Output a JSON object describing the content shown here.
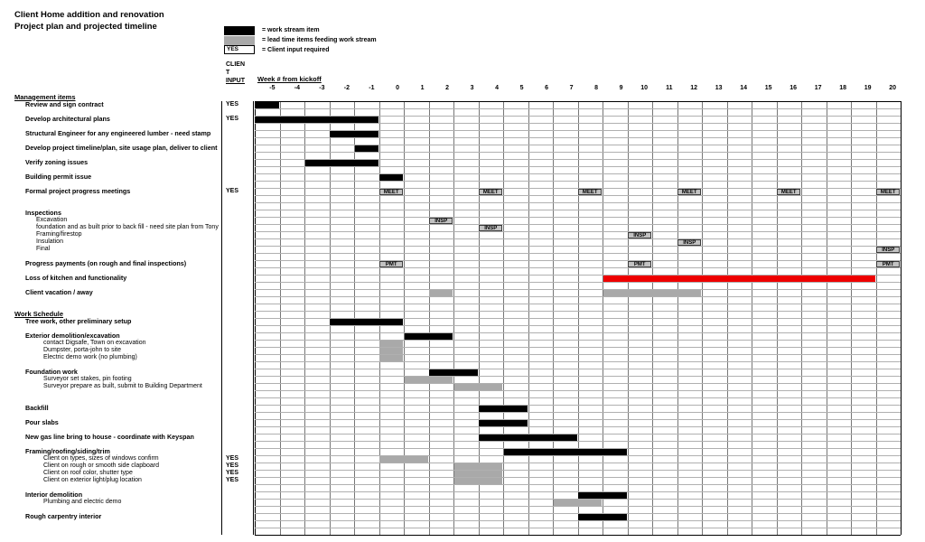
{
  "title": {
    "line1": "Client Home addition and renovation",
    "line2": "Project plan and projected timeline"
  },
  "legend": {
    "items": [
      {
        "swatch": "black",
        "label": "= work stream item"
      },
      {
        "swatch": "gray",
        "label": "= lead time items feeding work stream"
      },
      {
        "swatch": "yes-box",
        "swatch_text": "YES",
        "label": "= Client input required"
      }
    ]
  },
  "client_input_header_lines": [
    "CLIEN",
    "T",
    "INPUT"
  ],
  "colors": {
    "black": "#000000",
    "gray": "#a9a9a9",
    "red": "#ee0000",
    "marker_bg": "#c2c2c2"
  },
  "chart_data": {
    "type": "gantt",
    "title": "Client Home addition and renovation - Project plan and projected timeline",
    "x_axis": {
      "label": "Week # from kickoff",
      "range": [
        -5,
        20
      ]
    },
    "weeks": [
      -5,
      -4,
      -3,
      -2,
      -1,
      0,
      1,
      2,
      3,
      4,
      5,
      6,
      7,
      8,
      9,
      10,
      11,
      12,
      13,
      14,
      15,
      16,
      17,
      18,
      19,
      20
    ],
    "row_count": 60,
    "tasks": [
      {
        "row": -1,
        "style": "section",
        "indent": 0,
        "label": "Management items"
      },
      {
        "row": 0,
        "style": "task",
        "indent": 1,
        "label": "Review and sign contract",
        "client_input": "YES",
        "bars": [
          {
            "start": -5,
            "end": -5,
            "color": "black"
          }
        ]
      },
      {
        "row": 2,
        "style": "task",
        "indent": 1,
        "label": "Develop architectural plans",
        "client_input": "YES",
        "bars": [
          {
            "start": -5,
            "end": -1,
            "color": "black"
          }
        ]
      },
      {
        "row": 4,
        "style": "task",
        "indent": 1,
        "label": "Structural Engineer for any engineered lumber - need stamp",
        "bars": [
          {
            "start": -2,
            "end": -1,
            "color": "black"
          }
        ]
      },
      {
        "row": 6,
        "style": "task",
        "indent": 1,
        "label": "Develop project timeline/plan, site usage plan, deliver to client",
        "bars": [
          {
            "start": -1,
            "end": -1,
            "color": "black"
          }
        ]
      },
      {
        "row": 8,
        "style": "task",
        "indent": 1,
        "label": "Verify zoning issues",
        "bars": [
          {
            "start": -3,
            "end": -1,
            "color": "black"
          }
        ]
      },
      {
        "row": 10,
        "style": "task",
        "indent": 1,
        "label": "Building permit issue",
        "bars": [
          {
            "start": 0,
            "end": 0,
            "color": "black"
          }
        ]
      },
      {
        "row": 12,
        "style": "task",
        "indent": 1,
        "label": "Formal project progress meetings",
        "client_input": "YES",
        "markers": [
          {
            "week": 0,
            "text": "MEET"
          },
          {
            "week": 4,
            "text": "MEET"
          },
          {
            "week": 8,
            "text": "MEET"
          },
          {
            "week": 12,
            "text": "MEET"
          },
          {
            "week": 16,
            "text": "MEET"
          },
          {
            "week": 20,
            "text": "MEET"
          }
        ]
      },
      {
        "row": 15,
        "style": "task",
        "indent": 1,
        "label": "Inspections"
      },
      {
        "row": 16,
        "style": "sub",
        "indent": 2,
        "label": "Excavation",
        "markers": [
          {
            "week": 2,
            "text": "INSP"
          }
        ]
      },
      {
        "row": 17,
        "style": "sub",
        "indent": 2,
        "label": "foundation and as built prior to back fill - need site plan from Tony",
        "markers": [
          {
            "week": 4,
            "text": "INSP"
          }
        ]
      },
      {
        "row": 18,
        "style": "sub",
        "indent": 2,
        "label": "Framing/firestop",
        "markers": [
          {
            "week": 10,
            "text": "INSP"
          }
        ]
      },
      {
        "row": 19,
        "style": "sub",
        "indent": 2,
        "label": "Insulation",
        "markers": [
          {
            "week": 12,
            "text": "INSP"
          }
        ]
      },
      {
        "row": 20,
        "style": "sub",
        "indent": 2,
        "label": "Final",
        "markers": [
          {
            "week": 20,
            "text": "INSP"
          }
        ]
      },
      {
        "row": 22,
        "style": "task",
        "indent": 1,
        "label": "Progress payments (on rough and final inspections)",
        "markers": [
          {
            "week": 0,
            "text": "PMT"
          },
          {
            "week": 10,
            "text": "PMT"
          },
          {
            "week": 20,
            "text": "PMT"
          }
        ]
      },
      {
        "row": 24,
        "style": "task",
        "indent": 1,
        "label": "Loss of kitchen and functionality",
        "bars": [
          {
            "start": 9,
            "end": 19,
            "color": "red"
          }
        ]
      },
      {
        "row": 26,
        "style": "task",
        "indent": 1,
        "label": "Client vacation / away",
        "bars": [
          {
            "start": 2,
            "end": 2,
            "color": "gray"
          },
          {
            "start": 9,
            "end": 12,
            "color": "gray"
          }
        ]
      },
      {
        "row": 29,
        "style": "section",
        "indent": 0,
        "label": "Work Schedule"
      },
      {
        "row": 30,
        "style": "task",
        "indent": 1,
        "label": "Tree work, other preliminary setup",
        "bars": [
          {
            "start": -2,
            "end": 0,
            "color": "black"
          }
        ]
      },
      {
        "row": 32,
        "style": "task",
        "indent": 1,
        "label": "Exterior demolition/excavation",
        "bars": [
          {
            "start": 1,
            "end": 2,
            "color": "black"
          }
        ]
      },
      {
        "row": 33,
        "style": "sub",
        "indent": 3,
        "label": "contact Digsafe, Town on excavation",
        "bars": [
          {
            "start": 0,
            "end": 0,
            "color": "gray"
          }
        ]
      },
      {
        "row": 34,
        "style": "sub",
        "indent": 3,
        "label": "Dumpster, porta-john to site",
        "bars": [
          {
            "start": 0,
            "end": 0,
            "color": "gray"
          }
        ]
      },
      {
        "row": 35,
        "style": "sub",
        "indent": 3,
        "label": "Electric demo work (no plumbing)",
        "bars": [
          {
            "start": 0,
            "end": 0,
            "color": "gray"
          }
        ]
      },
      {
        "row": 37,
        "style": "task",
        "indent": 1,
        "label": "Foundation work",
        "bars": [
          {
            "start": 2,
            "end": 3,
            "color": "black"
          }
        ]
      },
      {
        "row": 38,
        "style": "sub",
        "indent": 3,
        "label": "Surveyor set stakes, pin footing",
        "bars": [
          {
            "start": 1,
            "end": 2,
            "color": "gray"
          }
        ]
      },
      {
        "row": 39,
        "style": "sub",
        "indent": 3,
        "label": "Surveyor prepare as built, submit to Building Department",
        "bars": [
          {
            "start": 3,
            "end": 4,
            "color": "gray"
          }
        ]
      },
      {
        "row": 42,
        "style": "task",
        "indent": 1,
        "label": "Backfill",
        "bars": [
          {
            "start": 4,
            "end": 5,
            "color": "black"
          }
        ]
      },
      {
        "row": 44,
        "style": "task",
        "indent": 1,
        "label": "Pour slabs",
        "bars": [
          {
            "start": 4,
            "end": 5,
            "color": "black"
          }
        ]
      },
      {
        "row": 46,
        "style": "task",
        "indent": 1,
        "label": "New gas line bring to house - coordinate with Keyspan",
        "bars": [
          {
            "start": 4,
            "end": 7,
            "color": "black"
          }
        ]
      },
      {
        "row": 48,
        "style": "task",
        "indent": 1,
        "label": "Framing/roofing/siding/trim",
        "bars": [
          {
            "start": 5,
            "end": 9,
            "color": "black"
          }
        ]
      },
      {
        "row": 49,
        "style": "sub",
        "indent": 3,
        "label": "Client on types, sizes of windows confirm",
        "client_input": "YES",
        "bars": [
          {
            "start": 0,
            "end": 1,
            "color": "gray"
          }
        ]
      },
      {
        "row": 50,
        "style": "sub",
        "indent": 3,
        "label": "Client on rough or smooth side clapboard",
        "client_input": "YES",
        "bars": [
          {
            "start": 3,
            "end": 4,
            "color": "gray"
          }
        ]
      },
      {
        "row": 51,
        "style": "sub",
        "indent": 3,
        "label": "Client on roof color, shutter type",
        "client_input": "YES",
        "bars": [
          {
            "start": 3,
            "end": 4,
            "color": "gray"
          }
        ]
      },
      {
        "row": 52,
        "style": "sub",
        "indent": 3,
        "label": "Client on exterior light/plug location",
        "client_input": "YES",
        "bars": [
          {
            "start": 3,
            "end": 4,
            "color": "gray"
          }
        ]
      },
      {
        "row": 54,
        "style": "task",
        "indent": 1,
        "label": "Interior demolition",
        "bars": [
          {
            "start": 8,
            "end": 9,
            "color": "black"
          }
        ]
      },
      {
        "row": 55,
        "style": "sub",
        "indent": 3,
        "label": "Plumbing and electric demo",
        "bars": [
          {
            "start": 7,
            "end": 8,
            "color": "gray"
          }
        ]
      },
      {
        "row": 57,
        "style": "task",
        "indent": 1,
        "label": "Rough carpentry interior",
        "bars": [
          {
            "start": 8,
            "end": 9,
            "color": "black"
          }
        ]
      }
    ]
  }
}
